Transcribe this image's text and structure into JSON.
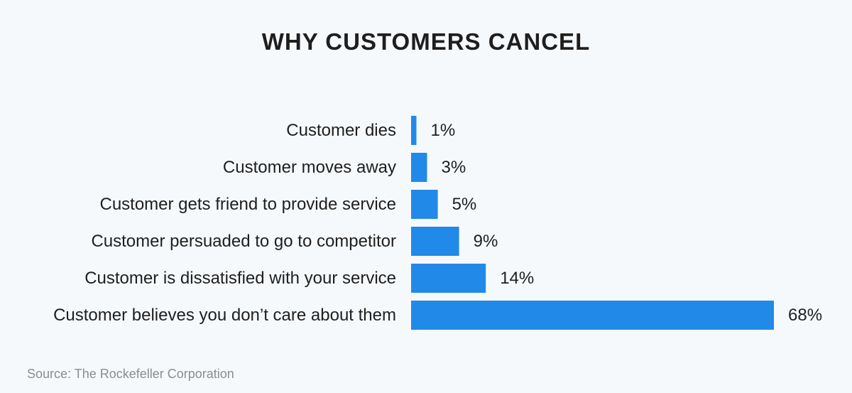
{
  "chart_data": {
    "type": "bar",
    "orientation": "horizontal",
    "title": "WHY CUSTOMERS CANCEL",
    "categories": [
      "Customer dies",
      "Customer moves away",
      "Customer gets friend to provide service",
      "Customer persuaded to go to competitor",
      "Customer is dissatisfied with your service",
      "Customer believes you don’t care about them"
    ],
    "values": [
      1,
      3,
      5,
      9,
      14,
      68
    ],
    "value_labels": [
      "1%",
      "3%",
      "5%",
      "9%",
      "14%",
      "68%"
    ],
    "xlabel": "",
    "ylabel": "",
    "xlim": [
      0,
      68
    ],
    "grid": false,
    "legend": "none",
    "source": "Source: The Rockefeller Corporation"
  },
  "colors": {
    "bar": "#2189e8",
    "background": "#f6f9fc",
    "text": "#1e1e1e",
    "source": "#8c8c8c"
  }
}
